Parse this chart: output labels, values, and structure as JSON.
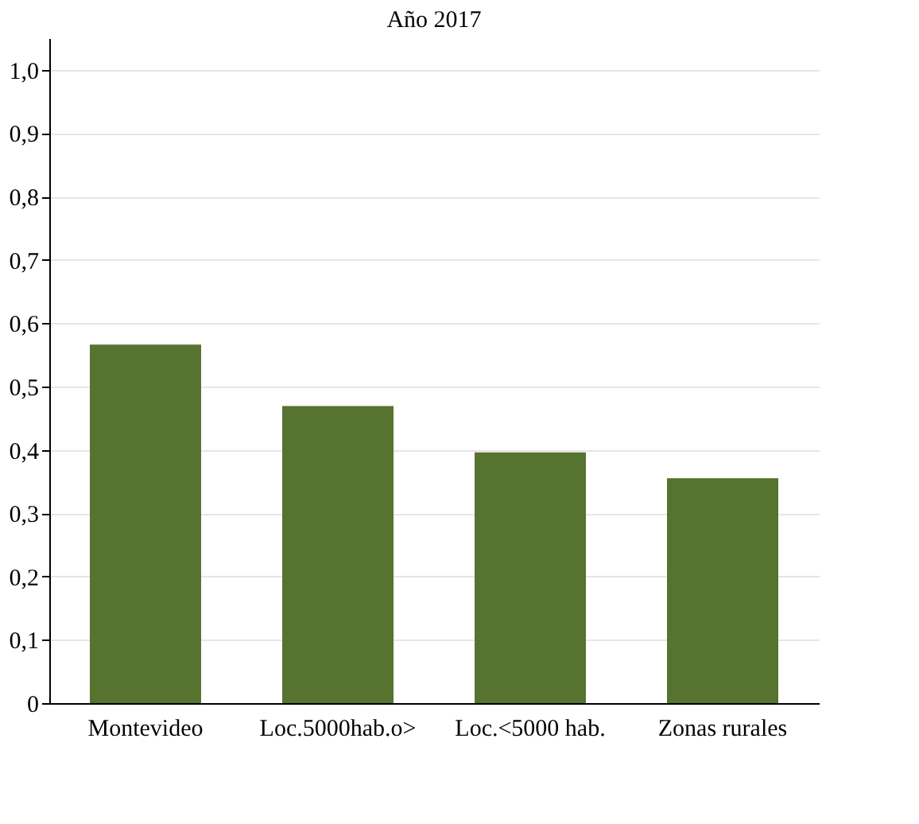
{
  "chart_data": {
    "type": "bar",
    "title": "Año 2017",
    "categories": [
      "Montevideo",
      "Loc.5000hab.o>",
      "Loc.<5000 hab.",
      "Zonas rurales"
    ],
    "values": [
      0.566,
      0.469,
      0.396,
      0.355
    ],
    "color": "#56732f",
    "ylim": [
      0,
      1.05
    ],
    "yticks": [
      0,
      {
        "value": 0.1,
        "label": "0,1"
      },
      {
        "value": 0.2,
        "label": "0,2"
      },
      {
        "value": 0.3,
        "label": "0,3"
      },
      {
        "value": 0.4,
        "label": "0,4"
      },
      {
        "value": 0.5,
        "label": "0,5"
      },
      {
        "value": 0.6,
        "label": "0,6"
      },
      {
        "value": 0.7,
        "label": "0,7"
      },
      {
        "value": 0.8,
        "label": "0,8"
      },
      {
        "value": 0.9,
        "label": "0,9"
      },
      {
        "value": 1.0,
        "label": "1,0"
      }
    ],
    "grid": "y"
  }
}
